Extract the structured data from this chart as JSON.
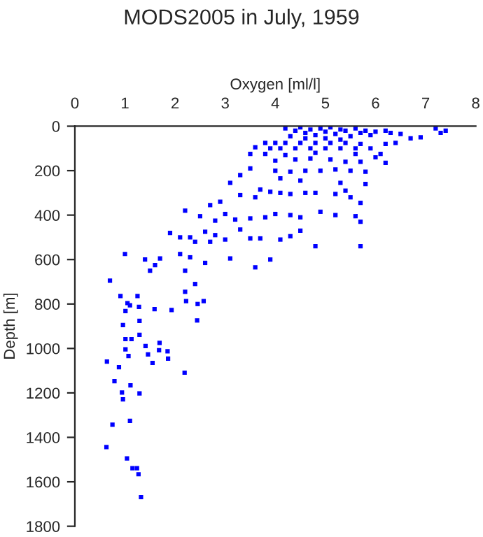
{
  "chart_data": {
    "type": "scatter",
    "title": "MODS2005 in July, 1959",
    "xlabel": "Oxygen [ml/l]",
    "ylabel": "Depth [m]",
    "xlim": [
      0,
      8
    ],
    "xticks": [
      0,
      1,
      2,
      3,
      4,
      5,
      6,
      7,
      8
    ],
    "ylim": [
      1800,
      0
    ],
    "yticks": [
      0,
      200,
      400,
      600,
      800,
      1000,
      1200,
      1400,
      1600,
      1800
    ],
    "marker": "square",
    "grid": false,
    "series": [
      {
        "color": "#0000ff",
        "x": [
          4.2,
          4.4,
          4.5,
          4.6,
          4.7,
          4.8,
          4.9,
          5.0,
          5.1,
          5.2,
          5.3,
          5.4,
          5.5,
          5.6,
          5.7,
          5.8,
          6.0,
          6.2,
          6.3,
          6.5,
          6.7,
          6.9,
          7.2,
          7.3,
          7.4,
          6.4,
          6.2,
          5.9,
          4.3,
          4.6,
          5.0,
          5.3,
          3.8,
          4.0,
          4.2,
          4.5,
          4.8,
          5.1,
          5.4,
          5.7,
          3.6,
          3.9,
          4.1,
          4.4,
          4.7,
          5.0,
          5.3,
          5.6,
          5.9,
          3.5,
          3.8,
          4.2,
          4.8,
          5.6,
          6.1,
          4.0,
          4.4,
          4.7,
          5.1,
          5.4,
          5.7,
          6.0,
          6.2,
          3.5,
          3.3,
          4.0,
          4.3,
          4.6,
          4.9,
          5.2,
          5.5,
          5.8,
          4.1,
          4.5,
          3.1,
          5.3,
          5.8,
          3.3,
          3.6,
          3.7,
          3.9,
          4.1,
          4.3,
          4.6,
          4.8,
          5.2,
          5.4,
          5.5,
          5.7,
          2.9,
          2.7,
          3.0,
          2.5,
          2.8,
          3.2,
          3.5,
          3.8,
          4.0,
          4.3,
          4.5,
          4.9,
          5.2,
          5.6,
          5.7,
          2.2,
          4.5,
          1.9,
          2.1,
          2.3,
          2.6,
          2.8,
          3.0,
          3.3,
          3.5,
          3.7,
          4.1,
          4.3,
          4.8,
          5.7,
          2.4,
          2.7,
          1.0,
          1.4,
          1.7,
          1.6,
          1.5,
          2.1,
          2.3,
          2.6,
          3.1,
          3.6,
          3.9,
          2.2,
          0.7,
          2.4,
          2.2,
          0.91,
          1.25,
          1.05,
          1.1,
          1.28,
          1.59,
          1.93,
          2.22,
          2.45,
          2.57,
          2.44,
          1.01,
          1.29,
          0.96,
          1.29,
          1.01,
          1.13,
          1.41,
          1.69,
          1.68,
          1.85,
          1.01,
          1.07,
          1.46,
          1.86,
          1.55,
          0.64,
          0.88,
          2.19,
          0.79,
          1.11,
          0.94,
          0.96,
          1.29,
          1.1,
          0.75,
          0.63,
          1.04,
          1.15,
          1.24,
          1.27,
          1.32
        ],
        "values": [
          10,
          20,
          5,
          30,
          15,
          40,
          10,
          25,
          5,
          35,
          15,
          20,
          45,
          10,
          30,
          20,
          25,
          20,
          30,
          35,
          55,
          50,
          10,
          30,
          20,
          75,
          80,
          40,
          45,
          55,
          55,
          60,
          75,
          75,
          75,
          75,
          75,
          75,
          75,
          80,
          95,
          100,
          100,
          100,
          100,
          100,
          100,
          100,
          100,
          125,
          125,
          130,
          120,
          125,
          125,
          155,
          150,
          145,
          150,
          160,
          160,
          140,
          165,
          190,
          220,
          200,
          205,
          200,
          200,
          195,
          200,
          205,
          235,
          245,
          255,
          255,
          260,
          310,
          320,
          285,
          295,
          300,
          305,
          300,
          300,
          305,
          290,
          320,
          345,
          340,
          355,
          395,
          405,
          425,
          420,
          415,
          410,
          395,
          400,
          410,
          385,
          400,
          405,
          430,
          380,
          470,
          480,
          500,
          500,
          475,
          490,
          510,
          465,
          505,
          505,
          510,
          495,
          540,
          540,
          520,
          520,
          575,
          600,
          595,
          625,
          650,
          575,
          590,
          615,
          595,
          635,
          600,
          650,
          695,
          710,
          745,
          764,
          764,
          796,
          806,
          813,
          823,
          827,
          787,
          800,
          787,
          874,
          832,
          876,
          895,
          939,
          958,
          958,
          989,
          975,
          1008,
          1013,
          1004,
          1034,
          1027,
          1046,
          1065,
          1059,
          1084,
          1109,
          1147,
          1166,
          1198,
          1229,
          1202,
          1326,
          1343,
          1444,
          1495,
          1539,
          1539,
          1566,
          1669
        ]
      }
    ]
  }
}
